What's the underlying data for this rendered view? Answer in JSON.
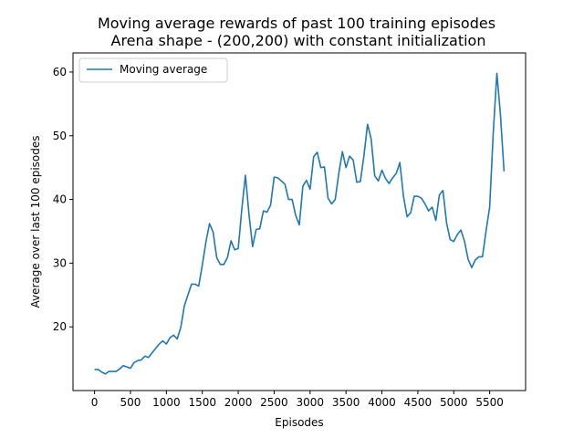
{
  "chart_data": {
    "type": "line",
    "title": "Moving average rewards of past 100 training episodes",
    "subtitle": "Arena shape - (200,200) with constant initialization",
    "xlabel": "Episodes",
    "ylabel": "Average over last 100 episodes",
    "xlim": [
      -300,
      6000
    ],
    "ylim": [
      10,
      63
    ],
    "xticks": [
      0,
      500,
      1000,
      1500,
      2000,
      2500,
      3000,
      3500,
      4000,
      4500,
      5000,
      5500
    ],
    "yticks": [
      20,
      30,
      40,
      50,
      60
    ],
    "grid": false,
    "legend_position": "top-left",
    "series": [
      {
        "name": "Moving average",
        "color": "#1f77b4",
        "x": [
          0,
          50,
          100,
          150,
          200,
          250,
          300,
          350,
          400,
          450,
          500,
          550,
          600,
          650,
          700,
          750,
          800,
          850,
          900,
          950,
          1000,
          1050,
          1100,
          1150,
          1200,
          1250,
          1300,
          1350,
          1400,
          1450,
          1500,
          1550,
          1600,
          1650,
          1700,
          1750,
          1800,
          1850,
          1900,
          1950,
          2000,
          2050,
          2100,
          2150,
          2200,
          2250,
          2300,
          2350,
          2400,
          2450,
          2500,
          2550,
          2600,
          2650,
          2700,
          2750,
          2800,
          2850,
          2900,
          2950,
          3000,
          3050,
          3100,
          3150,
          3200,
          3250,
          3300,
          3350,
          3400,
          3450,
          3500,
          3550,
          3600,
          3650,
          3700,
          3750,
          3800,
          3850,
          3900,
          3950,
          4000,
          4050,
          4100,
          4150,
          4200,
          4250,
          4300,
          4350,
          4400,
          4450,
          4500,
          4550,
          4600,
          4650,
          4700,
          4750,
          4800,
          4850,
          4900,
          4950,
          5000,
          5050,
          5100,
          5150,
          5200,
          5250,
          5300,
          5350,
          5400,
          5450,
          5500,
          5550,
          5600,
          5650,
          5700
        ],
        "values": [
          13.3,
          13.3,
          12.9,
          12.6,
          13.0,
          13.0,
          13.0,
          13.4,
          13.9,
          13.7,
          13.5,
          14.4,
          14.7,
          14.8,
          15.4,
          15.2,
          15.9,
          16.6,
          17.3,
          17.8,
          17.3,
          18.3,
          18.7,
          18.1,
          19.9,
          23.3,
          25.0,
          26.7,
          26.7,
          26.4,
          29.7,
          33.3,
          36.2,
          34.9,
          30.9,
          29.8,
          29.8,
          30.9,
          33.5,
          32.1,
          32.3,
          38.5,
          43.8,
          37.6,
          32.6,
          35.3,
          35.4,
          38.2,
          38.0,
          39.1,
          43.5,
          43.4,
          42.9,
          42.4,
          40.0,
          40.0,
          37.5,
          36.0,
          42.1,
          43.0,
          41.6,
          46.7,
          47.4,
          45.0,
          45.1,
          40.2,
          39.3,
          40.0,
          44.1,
          47.5,
          45.0,
          46.8,
          46.2,
          42.7,
          42.8,
          46.9,
          51.8,
          49.5,
          43.7,
          42.9,
          44.6,
          43.3,
          42.5,
          43.4,
          44.1,
          45.8,
          40.5,
          37.3,
          37.9,
          40.5,
          40.5,
          40.2,
          39.3,
          38.2,
          38.8,
          36.7,
          40.7,
          41.4,
          36.3,
          33.7,
          33.4,
          34.5,
          35.2,
          33.4,
          30.6,
          29.3,
          30.5,
          31.0,
          31.0,
          35.1,
          38.8,
          50.5,
          59.8,
          53.3,
          44.4
        ]
      }
    ]
  }
}
